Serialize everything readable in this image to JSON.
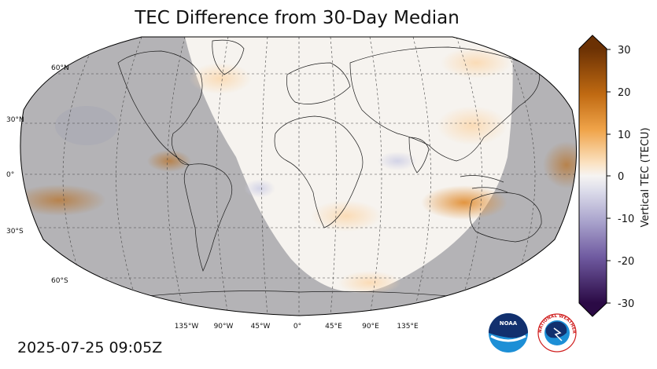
{
  "title": "TEC Difference from 30-Day Median",
  "timestamp": "2025-07-25 09:05Z",
  "map": {
    "projection": "Robinson",
    "lat_labels": [
      "60°N",
      "30°N",
      "0°",
      "30°S",
      "60°S"
    ],
    "lon_labels": [
      "135°W",
      "90°W",
      "45°W",
      "0°",
      "45°E",
      "90°E",
      "135°E"
    ]
  },
  "colorbar": {
    "label": "Vertical TEC (TECU)",
    "ticks": [
      "30",
      "20",
      "10",
      "0",
      "-10",
      "-20",
      "-30"
    ],
    "range": [
      -30,
      30
    ],
    "colors": {
      "max": "#7a3d06",
      "positive": "#e8922a",
      "zero": "#f7f4f0",
      "negative": "#8c7db8",
      "min": "#3a0b55"
    }
  },
  "logos": {
    "noaa": "NOAA",
    "nws": "NATIONAL WEATHER SERVICE"
  }
}
